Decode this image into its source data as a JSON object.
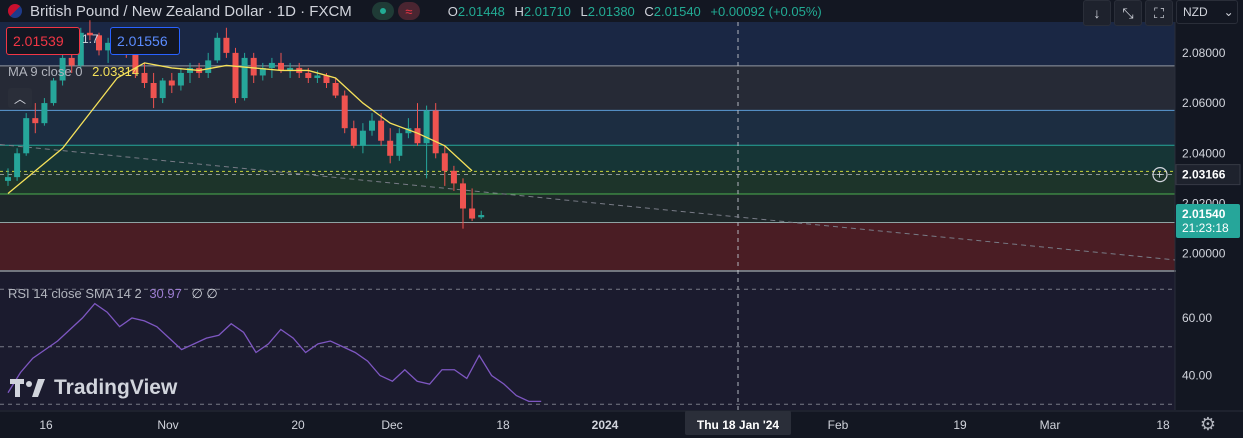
{
  "header": {
    "symbol": "British Pound / New Zealand Dollar · 1D · FXCM",
    "open": "2.01448",
    "high": "2.01710",
    "low": "2.01380",
    "close": "2.01540",
    "change": "+0.00092 (+0.05%)",
    "o_label": "O",
    "h_label": "H",
    "l_label": "L",
    "c_label": "C"
  },
  "trade": {
    "sell": "2.01539",
    "spread": "1.7",
    "buy": "2.01556"
  },
  "indicators": {
    "ma_label": "MA 9 close 0",
    "ma_value": "2.03314",
    "rsi_label": "RSI 14 close SMA 14 2",
    "rsi_value": "30.97",
    "rsi_extra": "∅ ∅"
  },
  "toolbar": {
    "currency": "NZD"
  },
  "brand": "TradingView",
  "colors": {
    "up": "#26a69a",
    "down": "#ef5350",
    "ma": "#f5e15a",
    "rsi": "#7e57c2",
    "bg": "#131722"
  },
  "chart_data": {
    "type": "candlestick",
    "price_axis": {
      "ticks": [
        "2.08000",
        "2.06000",
        "2.04000",
        "2.02000",
        "2.00000"
      ],
      "range": [
        1.9935,
        2.0923
      ]
    },
    "current_price": {
      "value": "2.01540",
      "countdown": "21:23:18"
    },
    "crosshair_price": "2.03166",
    "horizontal_levels": [
      2.0748,
      2.0571,
      2.0432,
      2.0328,
      2.0238,
      2.0124
    ],
    "trendline": {
      "from": [
        0,
        2.0435
      ],
      "to": [
        1175,
        1.9975
      ]
    },
    "x_axis": {
      "ticks": [
        "16",
        "Nov",
        "20",
        "Dec",
        "18",
        "2024",
        "Thu 18 Jan '24",
        "Feb",
        "19",
        "Mar",
        "18"
      ]
    },
    "candles": [
      [
        2.029,
        2.034,
        2.027,
        2.0305
      ],
      [
        2.0305,
        2.042,
        2.029,
        2.04
      ],
      [
        2.04,
        2.056,
        2.039,
        2.054
      ],
      [
        2.054,
        2.06,
        2.048,
        2.052
      ],
      [
        2.052,
        2.062,
        2.051,
        2.06
      ],
      [
        2.06,
        2.07,
        2.059,
        2.069
      ],
      [
        2.069,
        2.08,
        2.067,
        2.078
      ],
      [
        2.078,
        2.084,
        2.072,
        2.075
      ],
      [
        2.075,
        2.09,
        2.074,
        2.088
      ],
      [
        2.088,
        2.093,
        2.085,
        2.087
      ],
      [
        2.087,
        2.088,
        2.079,
        2.081
      ],
      [
        2.081,
        2.086,
        2.076,
        2.084
      ],
      [
        2.084,
        2.09,
        2.08,
        2.082
      ],
      [
        2.082,
        2.086,
        2.078,
        2.08
      ],
      [
        2.08,
        2.081,
        2.07,
        2.072
      ],
      [
        2.072,
        2.076,
        2.066,
        2.068
      ],
      [
        2.068,
        2.072,
        2.058,
        2.062
      ],
      [
        2.062,
        2.07,
        2.06,
        2.069
      ],
      [
        2.069,
        2.072,
        2.064,
        2.067
      ],
      [
        2.067,
        2.074,
        2.065,
        2.072
      ],
      [
        2.072,
        2.076,
        2.068,
        2.074
      ],
      [
        2.074,
        2.076,
        2.07,
        2.072
      ],
      [
        2.072,
        2.08,
        2.07,
        2.077
      ],
      [
        2.077,
        2.088,
        2.076,
        2.086
      ],
      [
        2.086,
        2.09,
        2.078,
        2.08
      ],
      [
        2.08,
        2.082,
        2.06,
        2.062
      ],
      [
        2.062,
        2.08,
        2.061,
        2.078
      ],
      [
        2.078,
        2.08,
        2.068,
        2.071
      ],
      [
        2.071,
        2.076,
        2.069,
        2.074
      ],
      [
        2.074,
        2.078,
        2.07,
        2.076
      ],
      [
        2.076,
        2.08,
        2.072,
        2.073
      ],
      [
        2.073,
        2.076,
        2.07,
        2.074
      ],
      [
        2.074,
        2.076,
        2.07,
        2.072
      ],
      [
        2.072,
        2.074,
        2.068,
        2.07
      ],
      [
        2.07,
        2.073,
        2.068,
        2.071
      ],
      [
        2.071,
        2.072,
        2.066,
        2.068
      ],
      [
        2.068,
        2.07,
        2.062,
        2.063
      ],
      [
        2.063,
        2.065,
        2.048,
        2.05
      ],
      [
        2.05,
        2.053,
        2.042,
        2.043
      ],
      [
        2.043,
        2.052,
        2.04,
        2.049
      ],
      [
        2.049,
        2.056,
        2.047,
        2.053
      ],
      [
        2.053,
        2.056,
        2.043,
        2.045
      ],
      [
        2.045,
        2.05,
        2.036,
        2.039
      ],
      [
        2.039,
        2.05,
        2.037,
        2.048
      ],
      [
        2.048,
        2.054,
        2.046,
        2.05
      ],
      [
        2.05,
        2.06,
        2.043,
        2.044
      ],
      [
        2.044,
        2.059,
        2.03,
        2.057
      ],
      [
        2.057,
        2.06,
        2.038,
        2.04
      ],
      [
        2.04,
        2.043,
        2.027,
        2.033
      ],
      [
        2.033,
        2.035,
        2.025,
        2.028
      ],
      [
        2.028,
        2.03,
        2.01,
        2.018
      ],
      [
        2.018,
        2.026,
        2.013,
        2.014
      ],
      [
        2.0145,
        2.0171,
        2.0138,
        2.0154
      ]
    ],
    "ma": [
      [
        0,
        2.024
      ],
      [
        3,
        2.033
      ],
      [
        6,
        2.042
      ],
      [
        9,
        2.056
      ],
      [
        12,
        2.07
      ],
      [
        15,
        2.076
      ],
      [
        18,
        2.074
      ],
      [
        21,
        2.073
      ],
      [
        24,
        2.075
      ],
      [
        27,
        2.074
      ],
      [
        30,
        2.073
      ],
      [
        33,
        2.073
      ],
      [
        36,
        2.07
      ],
      [
        39,
        2.06
      ],
      [
        42,
        2.052
      ],
      [
        45,
        2.048
      ],
      [
        48,
        2.043
      ],
      [
        51,
        2.033
      ]
    ],
    "rsi": {
      "ticks": [
        "60.00",
        "40.00"
      ],
      "range": [
        28,
        76
      ],
      "values": [
        [
          0,
          34
        ],
        [
          2,
          41
        ],
        [
          4,
          46
        ],
        [
          6,
          49
        ],
        [
          8,
          52
        ],
        [
          10,
          56
        ],
        [
          12,
          60
        ],
        [
          14,
          65
        ],
        [
          16,
          62
        ],
        [
          18,
          57
        ],
        [
          20,
          60
        ],
        [
          22,
          59
        ],
        [
          24,
          57
        ],
        [
          26,
          53
        ],
        [
          28,
          49
        ],
        [
          30,
          51
        ],
        [
          32,
          53
        ],
        [
          34,
          54
        ],
        [
          36,
          58
        ],
        [
          38,
          55
        ],
        [
          40,
          48
        ],
        [
          42,
          51
        ],
        [
          44,
          56
        ],
        [
          46,
          53
        ],
        [
          48,
          48
        ],
        [
          50,
          51
        ],
        [
          52,
          52
        ],
        [
          54,
          50
        ],
        [
          56,
          48
        ],
        [
          58,
          45
        ],
        [
          60,
          40
        ],
        [
          62,
          38
        ],
        [
          64,
          42
        ],
        [
          66,
          38
        ],
        [
          68,
          37
        ],
        [
          70,
          42
        ],
        [
          72,
          42
        ],
        [
          74,
          39
        ],
        [
          76,
          47
        ],
        [
          78,
          40
        ],
        [
          80,
          37
        ],
        [
          82,
          33
        ],
        [
          84,
          31
        ],
        [
          86,
          31
        ]
      ]
    }
  }
}
